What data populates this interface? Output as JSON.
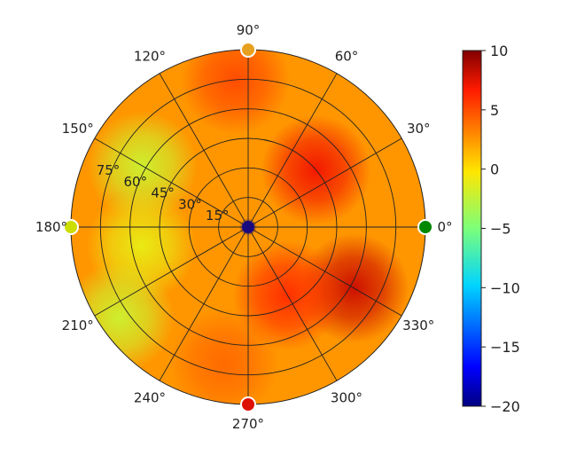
{
  "chart_data": {
    "type": "heatmap",
    "projection": "polar",
    "theta_tick_labels": [
      "0°",
      "30°",
      "60°",
      "90°",
      "120°",
      "150°",
      "180°",
      "210°",
      "240°",
      "270°",
      "300°",
      "330°"
    ],
    "theta_ticks_deg": [
      0,
      30,
      60,
      90,
      120,
      150,
      180,
      210,
      240,
      270,
      300,
      330
    ],
    "r_tick_labels": [
      "15°",
      "30°",
      "45°",
      "60°",
      "75°"
    ],
    "r_ticks": [
      15,
      30,
      45,
      60,
      75
    ],
    "r_range": [
      0,
      90
    ],
    "grid": true,
    "colormap": "jet",
    "colorbar": {
      "range": [
        -20,
        10
      ],
      "tick_values": [
        10,
        5,
        0,
        -5,
        -10,
        -15,
        -20
      ],
      "tick_labels": [
        "10",
        "5",
        "0",
        "−5",
        "−10",
        "−15",
        "−20"
      ],
      "placement": "right"
    },
    "field_hotspots": [
      {
        "theta": 40,
        "r": 45,
        "value": 7
      },
      {
        "theta": 330,
        "r": 62,
        "value": 8
      },
      {
        "theta": 300,
        "r": 40,
        "value": 6
      },
      {
        "theta": 95,
        "r": 75,
        "value": 5
      },
      {
        "theta": 260,
        "r": 70,
        "value": 4
      },
      {
        "theta": 150,
        "r": 62,
        "value": -2
      },
      {
        "theta": 190,
        "r": 55,
        "value": -1
      },
      {
        "theta": 215,
        "r": 80,
        "value": -2
      },
      {
        "theta": 0,
        "r": 0,
        "value": -20
      }
    ],
    "background_value": 2.5,
    "markers": [
      {
        "theta": 90,
        "r": 90,
        "color": "#e8a020"
      },
      {
        "theta": 180,
        "r": 90,
        "color": "#ccdd00"
      },
      {
        "theta": 270,
        "r": 90,
        "color": "#dd1100"
      },
      {
        "theta": 0,
        "r": 90,
        "color": "#008800"
      },
      {
        "theta": 0,
        "r": 0,
        "color": "#1a0a80"
      }
    ]
  }
}
